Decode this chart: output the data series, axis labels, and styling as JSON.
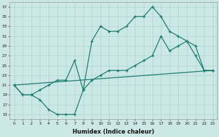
{
  "xlabel": "Humidex (Indice chaleur)",
  "ylabel": "",
  "xlim": [
    -0.5,
    23.5
  ],
  "ylim": [
    14,
    38
  ],
  "yticks": [
    15,
    17,
    19,
    21,
    23,
    25,
    27,
    29,
    31,
    33,
    35,
    37
  ],
  "xticks": [
    0,
    1,
    2,
    3,
    4,
    5,
    6,
    7,
    8,
    9,
    10,
    11,
    12,
    13,
    14,
    15,
    16,
    17,
    18,
    19,
    20,
    21,
    22,
    23
  ],
  "bg_color": "#cce8e6",
  "grid_color": "#aad4d0",
  "line_color": "#1a7a6e",
  "line1_x": [
    0,
    1,
    2,
    3,
    4,
    5,
    6,
    7,
    8,
    9,
    10,
    11,
    12,
    13,
    14,
    15,
    16,
    17,
    18,
    19,
    20,
    21,
    22,
    23
  ],
  "line1_y": [
    21,
    19,
    19,
    18,
    16,
    15,
    15,
    15,
    20,
    30,
    33,
    32,
    32,
    33,
    35,
    35,
    37,
    35,
    32,
    31,
    30,
    27,
    24,
    24
  ],
  "line2_x": [
    0,
    1,
    2,
    3,
    4,
    5,
    6,
    7,
    8,
    9,
    10,
    11,
    12,
    13,
    14,
    15,
    16,
    17,
    18,
    19,
    20,
    21,
    22,
    23
  ],
  "line2_y": [
    21,
    19,
    19,
    20,
    21,
    22,
    22,
    26,
    20,
    22,
    23,
    24,
    24,
    24,
    25,
    26,
    27,
    31,
    28,
    29,
    30,
    29,
    24,
    24
  ],
  "line3_x": [
    0,
    23
  ],
  "line3_y": [
    21,
    24
  ]
}
